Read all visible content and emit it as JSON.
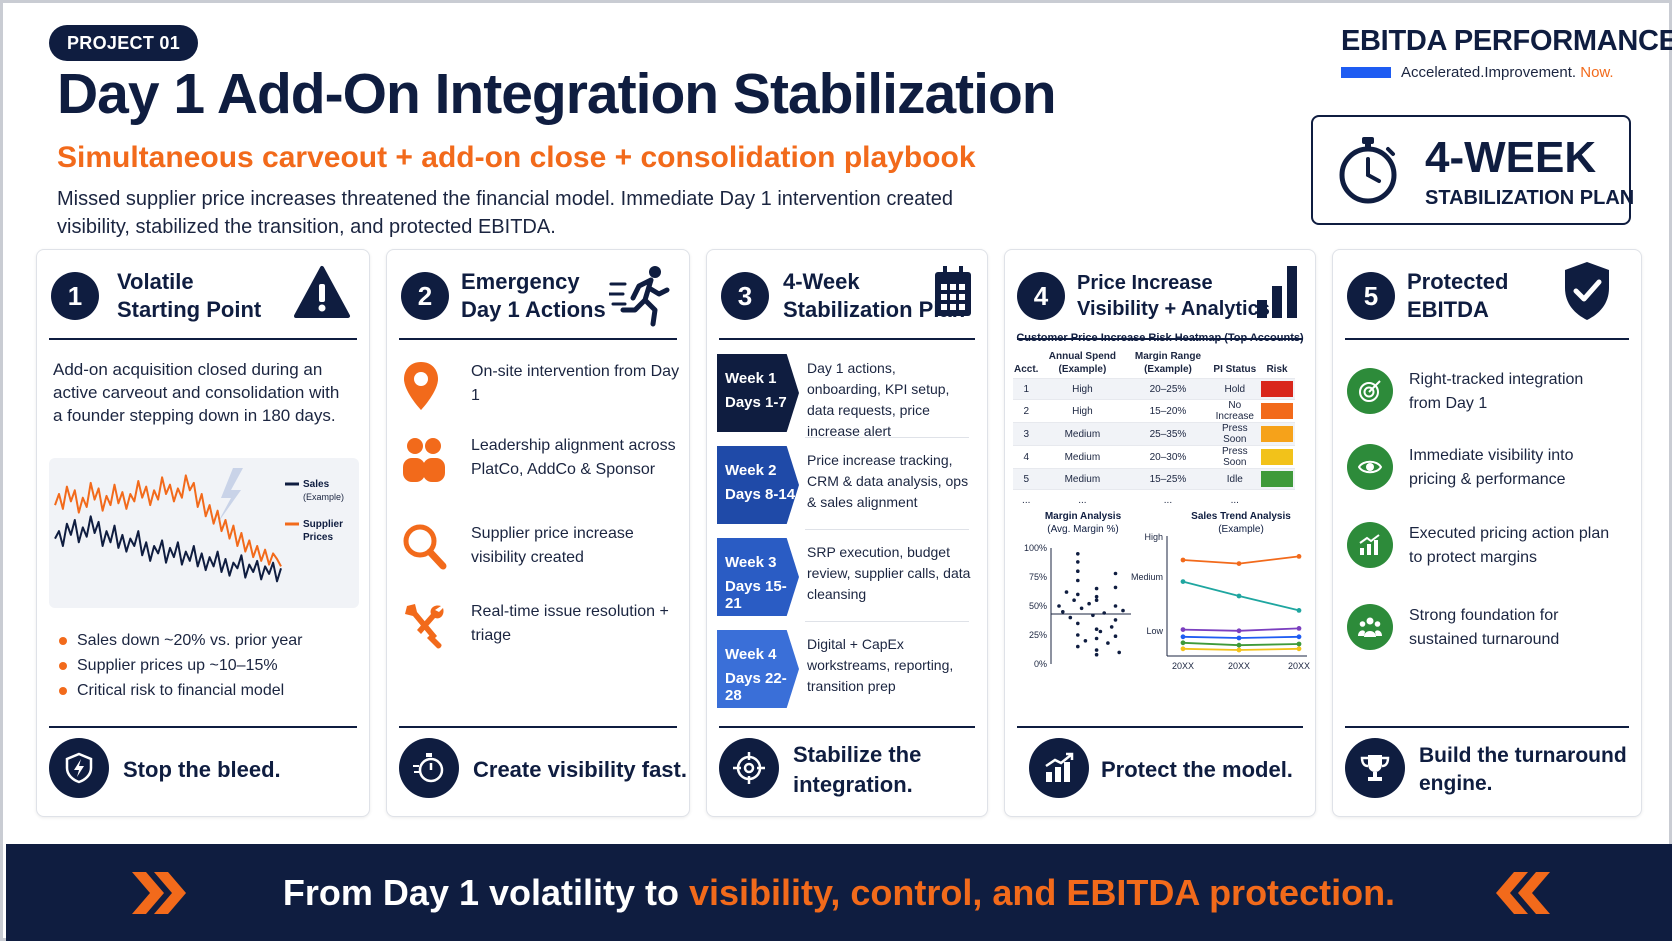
{
  "header": {
    "tag": "PROJECT 01",
    "title": "Day 1 Add-On Integration Stabilization",
    "subtitle": "Simultaneous carveout + add-on close + consolidation playbook",
    "description": "Missed supplier price increases threatened the financial model. Immediate Day 1 intervention created visibility, stabilized the transition, and protected EBITDA."
  },
  "brand": {
    "name": "EBITDA PERFORMANCE",
    "tagline_main": "Accelerated.Improvement.",
    "tagline_accent": "Now."
  },
  "plan_box": {
    "big": "4-WEEK",
    "small": "STABILIZATION PLAN"
  },
  "cards": [
    {
      "number": "1",
      "title_line1": "Volatile",
      "title_line2": "Starting Point",
      "text": "Add-on acquisition closed during an active carveout and consolidation with a founder stepping down in 180 days.",
      "legend_sales": "Sales",
      "legend_sales_sub": "(Example)",
      "legend_supplier": "Supplier",
      "legend_supplier_sub": "Prices",
      "bullets": [
        "Sales down ~20% vs. prior year",
        "Supplier prices up ~10–15%",
        "Critical risk to financial model"
      ],
      "footer": "Stop the bleed."
    },
    {
      "number": "2",
      "title_line1": "Emergency",
      "title_line2": "Day 1 Actions",
      "actions": [
        {
          "icon": "location-pin-icon",
          "text": "On-site intervention from Day 1"
        },
        {
          "icon": "people-icon",
          "text": "Leadership alignment across PlatCo, AddCo & Sponsor"
        },
        {
          "icon": "magnifier-icon",
          "text": "Supplier price increase visibility created"
        },
        {
          "icon": "tools-icon",
          "text": "Real-time issue resolution + triage"
        }
      ],
      "footer": "Create visibility fast."
    },
    {
      "number": "3",
      "title_line1": "4-Week",
      "title_line2": "Stabilization Plan",
      "weeks": [
        {
          "week": "Week 1",
          "days": "Days 1-7",
          "text": "Day 1 actions, onboarding, KPI setup, data requests, price increase alert",
          "color": "#0f1d40"
        },
        {
          "week": "Week 2",
          "days": "Days 8-14",
          "text": "Price increase tracking, CRM & data analysis, ops & sales alignment",
          "color": "#1f4aa8"
        },
        {
          "week": "Week 3",
          "days": "Days 15-21",
          "text": "SRP execution, budget review, supplier calls, data cleansing",
          "color": "#2a5cc4"
        },
        {
          "week": "Week 4",
          "days": "Days 22-28",
          "text": "Digital + CapEx workstreams, reporting, transition prep",
          "color": "#3a6fd8"
        }
      ],
      "footer_line1": "Stabilize the",
      "footer_line2": "integration."
    },
    {
      "number": "4",
      "title_line1": "Price Increase",
      "title_line2": "Visibility + Analytics",
      "heatmap_title": "Customer Price Increase Risk Heatmap (Top Accounts)",
      "heatmap_headers": [
        "Acct.",
        "Annual Spend (Example)",
        "Margin Range (Example)",
        "PI Status",
        "Risk"
      ],
      "heatmap_rows": [
        {
          "acct": "1",
          "spend": "High",
          "margin": "20–25%",
          "status": "Hold",
          "risk_color": "#d9271c"
        },
        {
          "acct": "2",
          "spend": "High",
          "margin": "15–20%",
          "status": "No Increase",
          "risk_color": "#f26a1b"
        },
        {
          "acct": "3",
          "spend": "Medium",
          "margin": "25–35%",
          "status": "Press Soon",
          "risk_color": "#f6a21a"
        },
        {
          "acct": "4",
          "spend": "Medium",
          "margin": "20–30%",
          "status": "Press Soon",
          "risk_color": "#f2c21a"
        },
        {
          "acct": "5",
          "spend": "Medium",
          "margin": "15–25%",
          "status": "Idle",
          "risk_color": "#3f9a3a"
        },
        {
          "acct": "...",
          "spend": "...",
          "margin": "...",
          "status": "...",
          "risk_color": ""
        }
      ],
      "margin_title": "Margin Analysis",
      "margin_sub": "(Avg. Margin %)",
      "margin_ticks": [
        "100%",
        "75%",
        "50%",
        "25%",
        "0%"
      ],
      "trend_title": "Sales Trend Analysis",
      "trend_sub": "(Example)",
      "trend_ylabels": [
        "High",
        "Medium",
        "Low"
      ],
      "trend_xlabels": [
        "20XX",
        "20XX",
        "20XX"
      ],
      "footer": "Protect the model."
    },
    {
      "number": "5",
      "title_line1": "Protected",
      "title_line2": "EBITDA",
      "items": [
        {
          "icon": "target-icon",
          "text": "Right-tracked integration from Day 1"
        },
        {
          "icon": "eye-icon",
          "text": "Immediate visibility into pricing & performance"
        },
        {
          "icon": "growth-chart-icon",
          "text": "Executed pricing action plan to protect margins"
        },
        {
          "icon": "team-icon",
          "text": "Strong foundation for sustained turnaround"
        }
      ],
      "footer_line1": "Build the turnaround",
      "footer_line2": "engine."
    }
  ],
  "banner": {
    "main": "From Day 1 volatility to",
    "accent": "visibility, control, and EBITDA protection."
  },
  "chart_data": [
    {
      "type": "line",
      "series": [
        {
          "name": "Sales (Example)",
          "color": "#0f1d40",
          "values": [
            62,
            66,
            58,
            70,
            64,
            72,
            60,
            68,
            63,
            74,
            65,
            71,
            58,
            66,
            60,
            69,
            57,
            64,
            55,
            62,
            58,
            66,
            53,
            60,
            50,
            58,
            54,
            61,
            49,
            57,
            52,
            60,
            48,
            55,
            50,
            58,
            47,
            54,
            45,
            52,
            47,
            55,
            44,
            51,
            42,
            49,
            46,
            53,
            41,
            48,
            44,
            50,
            40,
            47,
            43,
            49,
            39,
            46
          ]
        },
        {
          "name": "Supplier Prices",
          "color": "#f26a1b",
          "values": [
            80,
            86,
            78,
            90,
            82,
            88,
            76,
            84,
            79,
            92,
            83,
            89,
            77,
            85,
            80,
            91,
            81,
            87,
            78,
            86,
            82,
            93,
            84,
            90,
            80,
            88,
            83,
            95,
            86,
            91,
            82,
            89,
            84,
            96,
            88,
            92,
            79,
            86,
            74,
            80,
            70,
            77,
            66,
            72,
            62,
            69,
            58,
            65,
            55,
            61,
            52,
            58,
            50,
            56,
            48,
            54,
            51,
            47
          ]
        }
      ]
    },
    {
      "type": "scatter",
      "title": "Margin Analysis",
      "ylabel": "(Avg. Margin %)",
      "ylim": [
        0,
        100
      ],
      "x": [
        1,
        1.2,
        1.4,
        1.6,
        1.8,
        2,
        2,
        2,
        2,
        2,
        2,
        2,
        2,
        2.2,
        2.4,
        2.6,
        2.8,
        3,
        3,
        3,
        3,
        3,
        3,
        3,
        3.2,
        3.4,
        3.6,
        3.8,
        4,
        4,
        4,
        4,
        4,
        4.2,
        4.4
      ],
      "y": [
        50,
        45,
        62,
        40,
        55,
        95,
        88,
        80,
        72,
        60,
        35,
        25,
        15,
        48,
        20,
        52,
        42,
        30,
        65,
        58,
        22,
        12,
        8,
        55,
        28,
        44,
        18,
        32,
        78,
        66,
        50,
        38,
        24,
        10,
        46
      ]
    },
    {
      "type": "line",
      "title": "Sales Trend Analysis",
      "categories": [
        "20XX",
        "20XX",
        "20XX"
      ],
      "series": [
        {
          "color": "#f26a1b",
          "values": [
            80,
            77,
            83
          ]
        },
        {
          "color": "#1fa6a0",
          "values": [
            62,
            50,
            38
          ]
        },
        {
          "color": "#7b3fbf",
          "values": [
            22,
            21,
            23
          ]
        },
        {
          "color": "#1e5cf2",
          "values": [
            16,
            15,
            16
          ]
        },
        {
          "color": "#3f9a3a",
          "values": [
            11,
            9,
            10
          ]
        },
        {
          "color": "#f2c21a",
          "values": [
            6,
            5,
            6
          ]
        }
      ]
    }
  ]
}
